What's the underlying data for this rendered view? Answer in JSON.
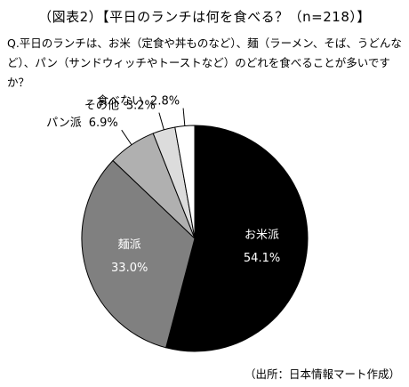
{
  "figure": {
    "title": "（図表2）【平日のランチは何を食べる？（n=218）】",
    "question": "Q.平日のランチは、お米（定食や丼ものなど）、麺（ラーメン、そば、うどんなど）、パン（サンドウィッチやトーストなど）のどれを食べることが多いですか？",
    "source": "（出所：日本情報マート作成）"
  },
  "chart_data": {
    "type": "pie",
    "title": "【平日のランチは何を食べる？（n=218）】",
    "n": 218,
    "labels": [
      "お米派",
      "麺派",
      "パン派",
      "その他",
      "食べない"
    ],
    "values": [
      54.1,
      33.0,
      6.9,
      3.2,
      2.8
    ],
    "value_labels": [
      "54.1%",
      "33.0%",
      "6.9%",
      "3.2%",
      "2.8%"
    ],
    "colors": [
      "#000000",
      "#808080",
      "#b0b0b0",
      "#dcdcdc",
      "#ffffff"
    ],
    "label_colors": [
      "#ffffff",
      "#ffffff",
      "#000000",
      "#000000",
      "#000000"
    ]
  }
}
